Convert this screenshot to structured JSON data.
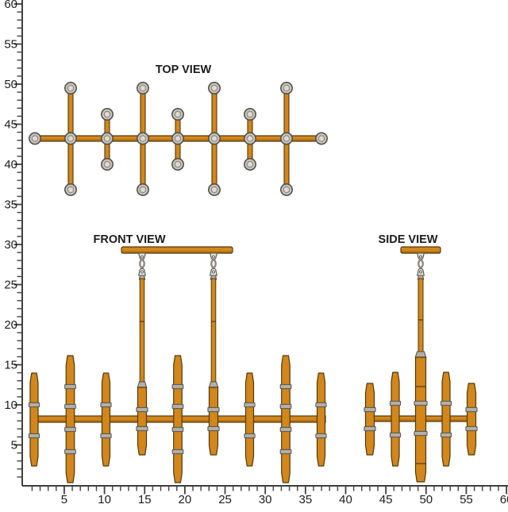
{
  "drawing": {
    "titles": {
      "top": "TOP VIEW",
      "front": "FRONT VIEW",
      "side": "SIDE VIEW"
    }
  },
  "axes": {
    "y_tick_labels": [
      "60",
      "55",
      "50",
      "45",
      "40",
      "35",
      "30",
      "25",
      "20",
      "15",
      "10",
      "5"
    ],
    "x_tick_labels": [
      "5",
      "10",
      "15",
      "20",
      "25",
      "30",
      "35",
      "40",
      "45",
      "50",
      "55",
      "60"
    ],
    "y_values": [
      60,
      55,
      50,
      45,
      40,
      35,
      30,
      25,
      20,
      15,
      10,
      5
    ],
    "x_values": [
      5,
      10,
      15,
      20,
      25,
      30,
      35,
      40,
      45,
      50,
      55,
      60
    ],
    "units_per_major_tick": 5,
    "units_per_minor_tick": 1
  },
  "colors": {
    "background": "#ffffff",
    "tube_fill": "#d2861b",
    "tube_stroke": "#4d3a10",
    "tube_shade": "#a96a12",
    "fitting_fill": "#c9c5bd",
    "fitting_inner": "#dedad2",
    "fitting_stroke": "#53504a",
    "band_fill": "#b3afa7",
    "hanger_fill": "#e9e7e1",
    "axis_color": "#3f3f3f",
    "label_color": "#1c1c1c"
  }
}
